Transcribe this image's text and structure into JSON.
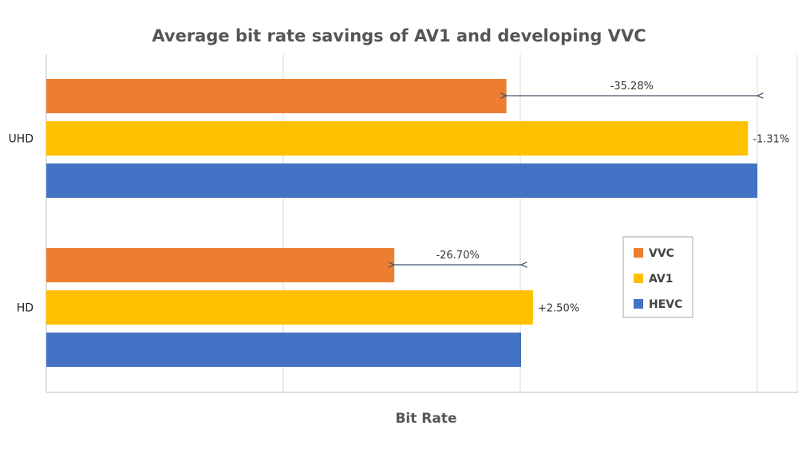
{
  "chart_data": {
    "type": "bar",
    "orientation": "horizontal",
    "title": "Average bit rate savings of AV1 and developing VVC",
    "xlabel": "Bit Rate",
    "ylabel": "",
    "categories": [
      "UHD",
      "HD"
    ],
    "series": [
      {
        "name": "VVC",
        "color": "#ED7D31",
        "values": [
          0.6472,
          0.4895
        ]
      },
      {
        "name": "AV1",
        "color": "#FFC000",
        "values": [
          0.9869,
          0.6845
        ]
      },
      {
        "name": "HEVC",
        "color": "#4472C4",
        "values": [
          1.0,
          0.6678
        ]
      }
    ],
    "annotations": [
      {
        "category": "UHD",
        "text": "-35.28%",
        "type": "arrow",
        "from_series": "VVC",
        "to_series": "HEVC"
      },
      {
        "category": "UHD",
        "text": "-1.31%",
        "type": "label",
        "series": "AV1"
      },
      {
        "category": "HD",
        "text": "-26.70%",
        "type": "arrow",
        "from_series": "VVC",
        "to_series": "HEVC"
      },
      {
        "category": "HD",
        "text": "+2.50%",
        "type": "label",
        "series": "AV1"
      }
    ],
    "xlim": [
      0,
      1.0
    ],
    "grid": true,
    "legend_position": "right"
  }
}
